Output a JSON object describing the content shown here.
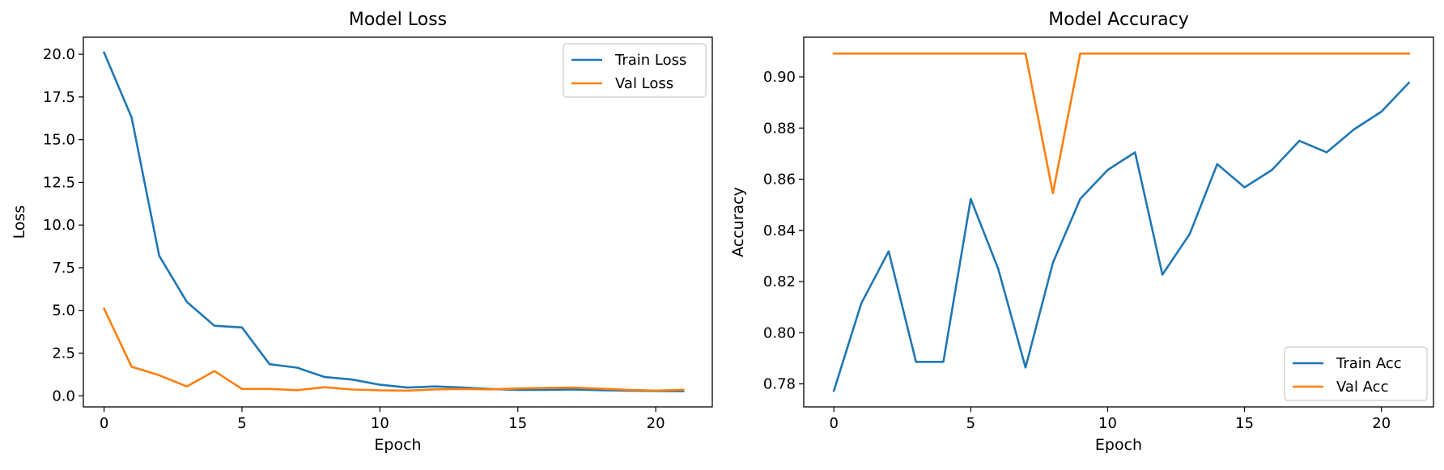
{
  "chart_data": [
    {
      "type": "line",
      "title": "Model Loss",
      "xlabel": "Epoch",
      "ylabel": "Loss",
      "x": [
        0,
        1,
        2,
        3,
        4,
        5,
        6,
        7,
        8,
        9,
        10,
        11,
        12,
        13,
        14,
        15,
        16,
        17,
        18,
        19,
        20,
        21
      ],
      "xlim": [
        -0.75,
        22.05
      ],
      "ylim": [
        -0.65,
        21.0
      ],
      "xticks": [
        0,
        5,
        10,
        15,
        20
      ],
      "xtick_labels": [
        "0",
        "5",
        "10",
        "15",
        "20"
      ],
      "yticks": [
        0,
        2.5,
        5,
        7.5,
        10,
        12.5,
        15,
        17.5,
        20
      ],
      "ytick_labels": [
        "0.0",
        "2.5",
        "5.0",
        "7.5",
        "10.0",
        "12.5",
        "15.0",
        "17.5",
        "20.0"
      ],
      "legend_position": "upper right",
      "series": [
        {
          "name": "Train Loss",
          "color": "#1f77b4",
          "values": [
            20.1,
            16.3,
            8.2,
            5.5,
            4.1,
            4.0,
            1.85,
            1.65,
            1.1,
            0.95,
            0.65,
            0.48,
            0.55,
            0.48,
            0.4,
            0.35,
            0.35,
            0.37,
            0.33,
            0.3,
            0.28,
            0.27
          ]
        },
        {
          "name": "Val Loss",
          "color": "#ff7f0e",
          "values": [
            5.1,
            1.7,
            1.2,
            0.55,
            1.45,
            0.4,
            0.4,
            0.33,
            0.5,
            0.37,
            0.32,
            0.3,
            0.38,
            0.4,
            0.38,
            0.43,
            0.46,
            0.48,
            0.42,
            0.35,
            0.3,
            0.35
          ]
        }
      ]
    },
    {
      "type": "line",
      "title": "Model Accuracy",
      "xlabel": "Epoch",
      "ylabel": "Accuracy",
      "x": [
        0,
        1,
        2,
        3,
        4,
        5,
        6,
        7,
        8,
        9,
        10,
        11,
        12,
        13,
        14,
        15,
        16,
        17,
        18,
        19,
        20,
        21
      ],
      "xlim": [
        -1.1,
        21.9
      ],
      "ylim": [
        0.771,
        0.9155
      ],
      "xticks": [
        0,
        5,
        10,
        15,
        20
      ],
      "xtick_labels": [
        "0",
        "5",
        "10",
        "15",
        "20"
      ],
      "yticks": [
        0.78,
        0.8,
        0.82,
        0.84,
        0.86,
        0.88,
        0.9
      ],
      "ytick_labels": [
        "0.78",
        "0.80",
        "0.82",
        "0.84",
        "0.86",
        "0.88",
        "0.90"
      ],
      "legend_position": "lower right",
      "series": [
        {
          "name": "Train Acc",
          "color": "#1f77b4",
          "values": [
            0.7773,
            0.8114,
            0.8318,
            0.7886,
            0.7886,
            0.8523,
            0.825,
            0.7864,
            0.8273,
            0.8523,
            0.8636,
            0.8705,
            0.8227,
            0.8386,
            0.8659,
            0.8568,
            0.8636,
            0.875,
            0.8705,
            0.8795,
            0.8864,
            0.8977
          ]
        },
        {
          "name": "Val Acc",
          "color": "#ff7f0e",
          "values": [
            0.9091,
            0.9091,
            0.9091,
            0.9091,
            0.9091,
            0.9091,
            0.9091,
            0.9091,
            0.8545,
            0.9091,
            0.9091,
            0.9091,
            0.9091,
            0.9091,
            0.9091,
            0.9091,
            0.9091,
            0.9091,
            0.9091,
            0.9091,
            0.9091,
            0.9091
          ]
        }
      ]
    }
  ]
}
